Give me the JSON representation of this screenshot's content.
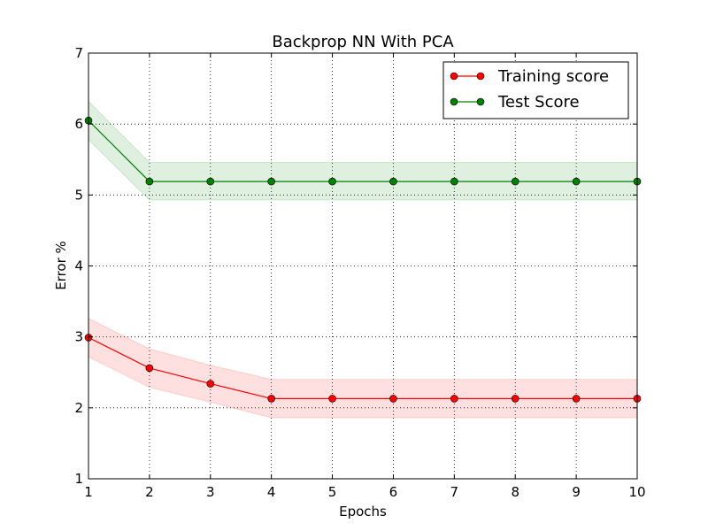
{
  "chart_data": {
    "type": "line",
    "title": "Backprop NN With PCA",
    "xlabel": "Epochs",
    "ylabel": "Error %",
    "x": [
      1,
      2,
      3,
      4,
      5,
      6,
      7,
      8,
      9,
      10
    ],
    "xlim": [
      1,
      10
    ],
    "ylim": [
      1,
      7
    ],
    "xticks": [
      "1",
      "2",
      "3",
      "4",
      "5",
      "6",
      "7",
      "8",
      "9",
      "10"
    ],
    "yticks": [
      "1",
      "2",
      "3",
      "4",
      "5",
      "6",
      "7"
    ],
    "grid": true,
    "legend_position": "top-right",
    "series": [
      {
        "name": "Training score",
        "color": "#ff0000",
        "band_color": "#ff0000",
        "values": [
          2.99,
          2.56,
          2.34,
          2.13,
          2.13,
          2.13,
          2.13,
          2.13,
          2.13,
          2.13
        ],
        "upper": [
          3.26,
          2.83,
          2.6,
          2.4,
          2.4,
          2.4,
          2.4,
          2.4,
          2.4,
          2.4
        ],
        "lower": [
          2.72,
          2.29,
          2.08,
          1.86,
          1.86,
          1.86,
          1.86,
          1.86,
          1.86,
          1.86
        ]
      },
      {
        "name": "Test Score",
        "color": "#008000",
        "band_color": "#008000",
        "values": [
          6.05,
          5.19,
          5.19,
          5.19,
          5.19,
          5.19,
          5.19,
          5.19,
          5.19,
          5.19
        ],
        "upper": [
          6.32,
          5.46,
          5.46,
          5.46,
          5.46,
          5.46,
          5.46,
          5.46,
          5.46,
          5.46
        ],
        "lower": [
          5.78,
          4.93,
          4.93,
          4.93,
          4.93,
          4.93,
          4.93,
          4.93,
          4.93,
          4.93
        ]
      }
    ]
  }
}
